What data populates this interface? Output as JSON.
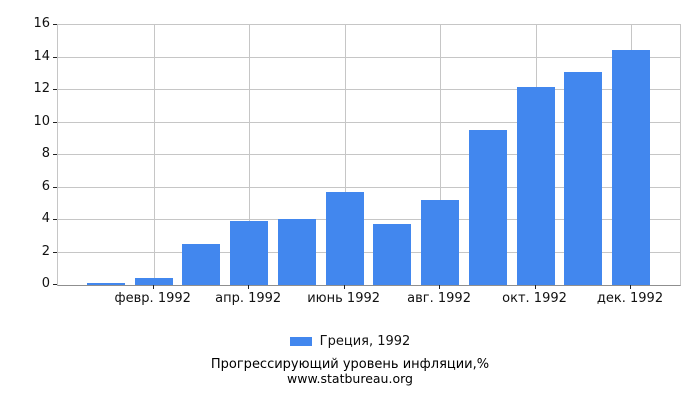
{
  "chart_data": {
    "type": "bar",
    "series_name": "Греция, 1992",
    "values": [
      0.15,
      0.45,
      2.5,
      3.95,
      4.05,
      5.7,
      3.75,
      5.25,
      9.55,
      12.2,
      13.1,
      14.45
    ],
    "x_tick_labels": [
      "февр. 1992",
      "апр. 1992",
      "июнь 1992",
      "авг. 1992",
      "окт. 1992",
      "дек. 1992"
    ],
    "x_tick_indices": [
      1,
      3,
      5,
      7,
      9,
      11
    ],
    "y_ticks": [
      0,
      2,
      4,
      6,
      8,
      10,
      12,
      14,
      16
    ],
    "ylim": [
      0,
      16
    ],
    "grid": true,
    "legend_position": "bottom",
    "title": "Прогрессирующий уровень инфляции,%",
    "subtitle": "www.statbureau.org",
    "bar_color": "#4287ee",
    "grid_color": "#c6c6c6",
    "axis_color": "#8f8f8f",
    "text_color": "#111111"
  }
}
